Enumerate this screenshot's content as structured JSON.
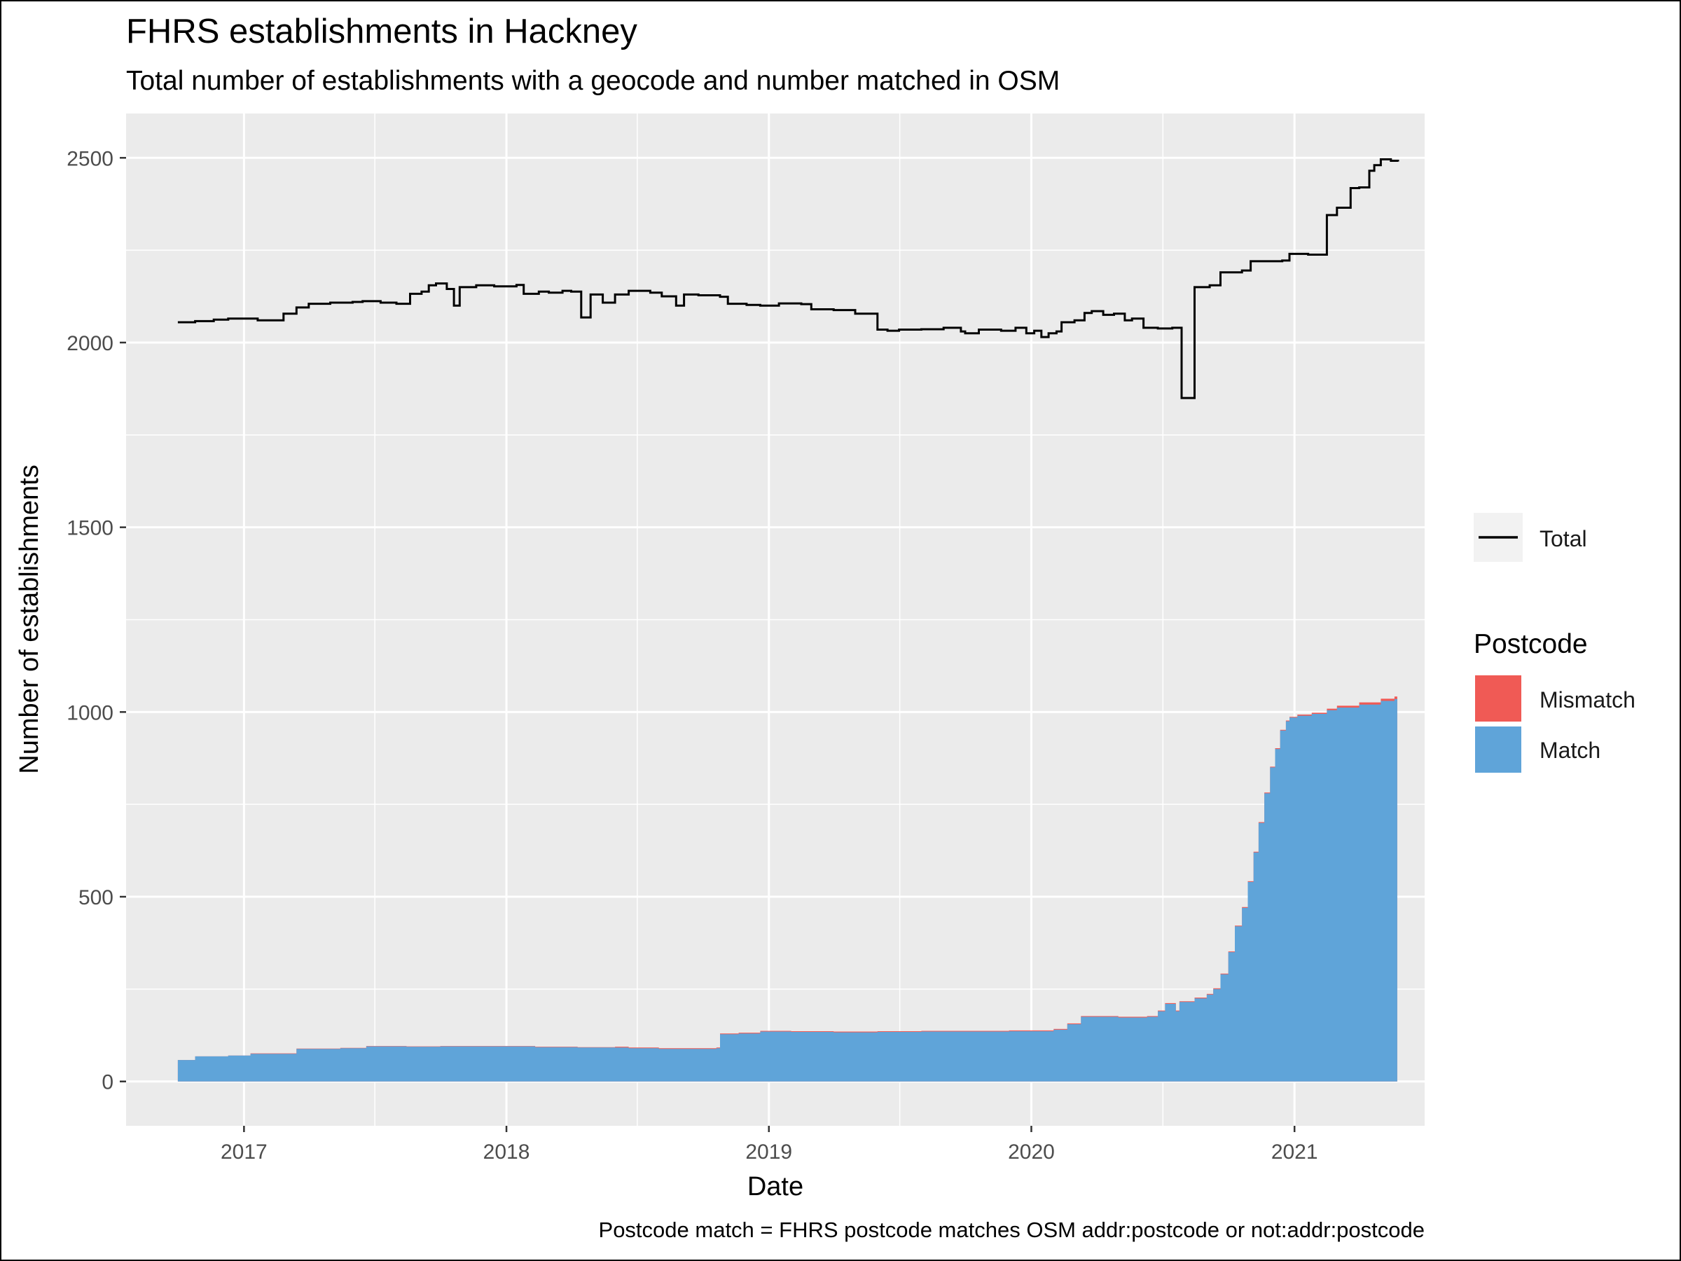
{
  "chart_data": {
    "type": "area",
    "title": "FHRS establishments in Hackney",
    "subtitle": "Total number of establishments with a geocode and number matched in OSM",
    "xlabel": "Date",
    "ylabel": "Number of establishments",
    "caption": "Postcode match = FHRS postcode matches OSM addr:postcode or not:addr:postcode",
    "xlim": [
      "2016-07-21",
      "2021-07-01"
    ],
    "ylim": [
      -120,
      2620
    ],
    "x_ticks": [
      "2017-01-01",
      "2018-01-01",
      "2019-01-01",
      "2020-01-01",
      "2021-01-01"
    ],
    "x_tick_labels": [
      "2017",
      "2018",
      "2019",
      "2020",
      "2021"
    ],
    "y_ticks": [
      0,
      500,
      1000,
      1500,
      2000,
      2500
    ],
    "y_tick_labels": [
      "0",
      "500",
      "1000",
      "1500",
      "2000",
      "2500"
    ],
    "grid": true,
    "colors": {
      "panel": "#ebebeb",
      "grid": "#ffffff",
      "total": "#000000",
      "mismatch": "#f05a55",
      "match": "#5fa4d9"
    },
    "legend": {
      "position": "right",
      "line_label": "Total",
      "fill_title": "Postcode",
      "fill_items": [
        "Mismatch",
        "Match"
      ]
    },
    "series": [
      {
        "name": "Total",
        "kind": "step-line",
        "points": [
          [
            "2016-10-01",
            2055
          ],
          [
            "2016-10-25",
            2058
          ],
          [
            "2016-11-20",
            2062
          ],
          [
            "2016-12-10",
            2065
          ],
          [
            "2017-01-20",
            2060
          ],
          [
            "2017-02-25",
            2078
          ],
          [
            "2017-03-15",
            2095
          ],
          [
            "2017-04-01",
            2105
          ],
          [
            "2017-05-01",
            2108
          ],
          [
            "2017-06-01",
            2110
          ],
          [
            "2017-06-15",
            2112
          ],
          [
            "2017-07-10",
            2108
          ],
          [
            "2017-08-01",
            2105
          ],
          [
            "2017-08-20",
            2132
          ],
          [
            "2017-09-05",
            2138
          ],
          [
            "2017-09-15",
            2155
          ],
          [
            "2017-09-25",
            2160
          ],
          [
            "2017-10-10",
            2145
          ],
          [
            "2017-10-20",
            2100
          ],
          [
            "2017-10-28",
            2150
          ],
          [
            "2017-11-20",
            2155
          ],
          [
            "2017-12-15",
            2152
          ],
          [
            "2018-01-15",
            2156
          ],
          [
            "2018-01-25",
            2132
          ],
          [
            "2018-02-15",
            2138
          ],
          [
            "2018-03-01",
            2135
          ],
          [
            "2018-03-20",
            2140
          ],
          [
            "2018-04-01",
            2138
          ],
          [
            "2018-04-15",
            2068
          ],
          [
            "2018-04-28",
            2130
          ],
          [
            "2018-05-15",
            2108
          ],
          [
            "2018-06-01",
            2130
          ],
          [
            "2018-06-20",
            2140
          ],
          [
            "2018-07-20",
            2135
          ],
          [
            "2018-08-05",
            2125
          ],
          [
            "2018-08-25",
            2100
          ],
          [
            "2018-09-05",
            2130
          ],
          [
            "2018-09-25",
            2128
          ],
          [
            "2018-10-25",
            2124
          ],
          [
            "2018-11-05",
            2105
          ],
          [
            "2018-12-01",
            2102
          ],
          [
            "2018-12-20",
            2100
          ],
          [
            "2019-01-15",
            2106
          ],
          [
            "2019-02-15",
            2104
          ],
          [
            "2019-03-01",
            2090
          ],
          [
            "2019-04-01",
            2088
          ],
          [
            "2019-05-01",
            2078
          ],
          [
            "2019-06-01",
            2035
          ],
          [
            "2019-06-15",
            2032
          ],
          [
            "2019-07-01",
            2035
          ],
          [
            "2019-08-01",
            2036
          ],
          [
            "2019-09-01",
            2040
          ],
          [
            "2019-09-25",
            2030
          ],
          [
            "2019-10-01",
            2025
          ],
          [
            "2019-10-20",
            2035
          ],
          [
            "2019-11-20",
            2032
          ],
          [
            "2019-12-10",
            2040
          ],
          [
            "2019-12-25",
            2025
          ],
          [
            "2020-01-05",
            2032
          ],
          [
            "2020-01-15",
            2015
          ],
          [
            "2020-01-25",
            2025
          ],
          [
            "2020-02-05",
            2030
          ],
          [
            "2020-02-12",
            2055
          ],
          [
            "2020-03-01",
            2060
          ],
          [
            "2020-03-15",
            2080
          ],
          [
            "2020-03-25",
            2085
          ],
          [
            "2020-04-10",
            2075
          ],
          [
            "2020-04-25",
            2078
          ],
          [
            "2020-05-10",
            2060
          ],
          [
            "2020-05-20",
            2065
          ],
          [
            "2020-06-05",
            2040
          ],
          [
            "2020-06-25",
            2038
          ],
          [
            "2020-07-15",
            2040
          ],
          [
            "2020-07-28",
            1850
          ],
          [
            "2020-08-15",
            2150
          ],
          [
            "2020-09-05",
            2155
          ],
          [
            "2020-09-20",
            2190
          ],
          [
            "2020-10-20",
            2195
          ],
          [
            "2020-11-01",
            2220
          ],
          [
            "2020-11-25",
            2220
          ],
          [
            "2020-12-15",
            2222
          ],
          [
            "2020-12-25",
            2240
          ],
          [
            "2021-01-20",
            2238
          ],
          [
            "2021-02-15",
            2345
          ],
          [
            "2021-03-01",
            2365
          ],
          [
            "2021-03-20",
            2418
          ],
          [
            "2021-04-01",
            2420
          ],
          [
            "2021-04-15",
            2465
          ],
          [
            "2021-04-22",
            2480
          ],
          [
            "2021-05-01",
            2496
          ],
          [
            "2021-05-15",
            2492
          ],
          [
            "2021-05-25",
            2490
          ]
        ]
      },
      {
        "name": "Match",
        "kind": "stacked-area",
        "points": [
          [
            "2016-10-01",
            58
          ],
          [
            "2016-10-25",
            68
          ],
          [
            "2016-12-10",
            70
          ],
          [
            "2017-01-10",
            75
          ],
          [
            "2017-03-15",
            88
          ],
          [
            "2017-05-15",
            90
          ],
          [
            "2017-06-20",
            95
          ],
          [
            "2017-08-15",
            94
          ],
          [
            "2017-10-01",
            95
          ],
          [
            "2017-12-20",
            95
          ],
          [
            "2018-02-10",
            93
          ],
          [
            "2018-04-10",
            92
          ],
          [
            "2018-06-20",
            90
          ],
          [
            "2018-08-01",
            88
          ],
          [
            "2018-10-20",
            90
          ],
          [
            "2018-10-25",
            128
          ],
          [
            "2018-11-20",
            130
          ],
          [
            "2018-12-20",
            135
          ],
          [
            "2019-02-01",
            134
          ],
          [
            "2019-04-01",
            133
          ],
          [
            "2019-06-01",
            134
          ],
          [
            "2019-08-01",
            135
          ],
          [
            "2019-10-01",
            135
          ],
          [
            "2019-12-01",
            136
          ],
          [
            "2020-01-15",
            136
          ],
          [
            "2020-02-01",
            140
          ],
          [
            "2020-02-20",
            155
          ],
          [
            "2020-03-10",
            175
          ],
          [
            "2020-05-01",
            173
          ],
          [
            "2020-06-10",
            175
          ],
          [
            "2020-06-25",
            190
          ],
          [
            "2020-07-05",
            210
          ],
          [
            "2020-07-20",
            190
          ],
          [
            "2020-07-25",
            215
          ],
          [
            "2020-08-15",
            225
          ],
          [
            "2020-09-01",
            235
          ],
          [
            "2020-09-10",
            250
          ],
          [
            "2020-09-20",
            290
          ],
          [
            "2020-10-01",
            350
          ],
          [
            "2020-10-10",
            420
          ],
          [
            "2020-10-20",
            470
          ],
          [
            "2020-10-28",
            540
          ],
          [
            "2020-11-05",
            620
          ],
          [
            "2020-11-12",
            700
          ],
          [
            "2020-11-20",
            780
          ],
          [
            "2020-11-28",
            850
          ],
          [
            "2020-12-05",
            900
          ],
          [
            "2020-12-12",
            950
          ],
          [
            "2020-12-20",
            975
          ],
          [
            "2020-12-25",
            985
          ],
          [
            "2021-01-05",
            990
          ],
          [
            "2021-01-25",
            995
          ],
          [
            "2021-02-15",
            1005
          ],
          [
            "2021-03-01",
            1012
          ],
          [
            "2021-04-01",
            1020
          ],
          [
            "2021-05-01",
            1030
          ],
          [
            "2021-05-20",
            1035
          ]
        ]
      },
      {
        "name": "Mismatch",
        "kind": "stacked-area",
        "points": [
          [
            "2016-10-01",
            0
          ],
          [
            "2017-01-10",
            1
          ],
          [
            "2018-06-01",
            2
          ],
          [
            "2020-01-01",
            2
          ],
          [
            "2020-12-20",
            2
          ],
          [
            "2021-01-05",
            3
          ],
          [
            "2021-02-15",
            4
          ],
          [
            "2021-03-01",
            5
          ],
          [
            "2021-04-01",
            6
          ],
          [
            "2021-05-01",
            6
          ],
          [
            "2021-05-20",
            7
          ]
        ]
      }
    ]
  }
}
